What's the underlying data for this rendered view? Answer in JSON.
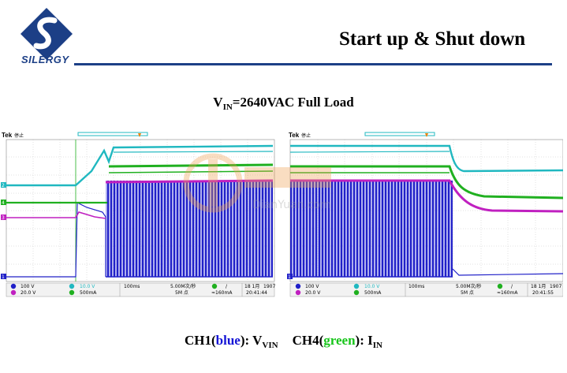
{
  "logo": {
    "text": "SILERGY",
    "icon": "silergy-s-logo-icon",
    "color": "#1c3f86"
  },
  "header": {
    "title": "Start up & Shut down"
  },
  "caption": {
    "v": "V",
    "sub": "IN",
    "rest": "=2640VAC  Full Load"
  },
  "legend": {
    "ch1": "CH1(",
    "ch1_color": "blue",
    "ch1_mid": "): V",
    "ch1_sub": "VIN",
    "ch4": "CH4(",
    "ch4_color": "green",
    "ch4_mid": "): I",
    "ch4_sub": "IN"
  },
  "colors": {
    "ch1": "#2020c8",
    "ch2": "#20b8c0",
    "ch3": "#c020c0",
    "ch4": "#20b020"
  },
  "watermark": {
    "text": "DianYuan.com",
    "icon": "dianyuan-watermark-icon"
  },
  "scopes": [
    {
      "tek": "Tek",
      "status": "停止",
      "settings": {
        "ch1": "100 V",
        "ch2": "10.0 V",
        "ch3": "20.0 V",
        "ch4": "500mA",
        "timebase": "100ms",
        "sample": "5.00M次/秒",
        "points": "5M 点",
        "trig_ch": "4",
        "trig_slope": "/",
        "trig_level": "≈160mA",
        "date": "18 1月",
        "year": "1907",
        "time": "20:41:44"
      },
      "markers": [
        "2",
        "4",
        "3",
        "1"
      ]
    },
    {
      "tek": "Tek",
      "status": "停止",
      "settings": {
        "ch1": "100 V",
        "ch2": "10.0 V",
        "ch3": "20.0 V",
        "ch4": "500mA",
        "timebase": "100ms",
        "sample": "5.00M次/秒",
        "points": "5M 点",
        "trig_ch": "4",
        "trig_slope": "/",
        "trig_level": "≈160mA",
        "date": "18 1月",
        "year": "1907",
        "time": "20:41:55"
      },
      "markers": [
        "1"
      ]
    }
  ]
}
